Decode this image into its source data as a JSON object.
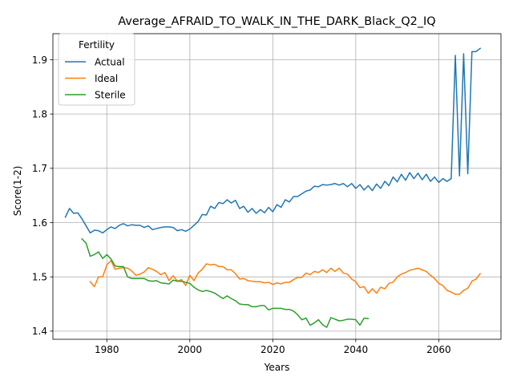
{
  "chart_data": {
    "type": "line",
    "title": "Average_AFRAID_TO_WALK_IN_THE_DARK_Black_Q2_IQ",
    "xlabel": "Years",
    "ylabel": "Score(1-2)",
    "xlim": [
      1967,
      2075
    ],
    "ylim": [
      1.385,
      1.948
    ],
    "xticks": [
      1980,
      2000,
      2020,
      2040,
      2060
    ],
    "yticks": [
      1.4,
      1.5,
      1.6,
      1.7,
      1.8,
      1.9
    ],
    "xtick_labels": [
      "1980",
      "2000",
      "2020",
      "2040",
      "2060"
    ],
    "ytick_labels": [
      "1.4",
      "1.5",
      "1.6",
      "1.7",
      "1.8",
      "1.9"
    ],
    "grid": true,
    "legend": {
      "title": "Fertility",
      "placement": "top-left"
    },
    "series": [
      {
        "name": "Actual",
        "color": "#1f77b4",
        "x": [
          1970,
          1971,
          1972,
          1973,
          1974,
          1975,
          1976,
          1977,
          1978,
          1979,
          1980,
          1981,
          1982,
          1983,
          1984,
          1985,
          1986,
          1987,
          1988,
          1989,
          1990,
          1991,
          1992,
          1993,
          1994,
          1995,
          1996,
          1997,
          1998,
          1999,
          2000,
          2001,
          2002,
          2003,
          2004,
          2005,
          2006,
          2007,
          2008,
          2009,
          2010,
          2011,
          2012,
          2013,
          2014,
          2015,
          2016,
          2017,
          2018,
          2019,
          2020,
          2021,
          2022,
          2023,
          2024,
          2025,
          2026,
          2027,
          2028,
          2029,
          2030,
          2031,
          2032,
          2033,
          2034,
          2035,
          2036,
          2037,
          2038,
          2039,
          2040,
          2041,
          2042,
          2043,
          2044,
          2045,
          2046,
          2047,
          2048,
          2049,
          2050,
          2051,
          2052,
          2053,
          2054,
          2055,
          2056,
          2057,
          2058,
          2059,
          2060,
          2061,
          2062,
          2063,
          2064,
          2065,
          2066,
          2067,
          2068,
          2069,
          2070
        ],
        "values": [
          1.61,
          1.626,
          1.617,
          1.618,
          1.607,
          1.594,
          1.581,
          1.586,
          1.585,
          1.581,
          1.587,
          1.592,
          1.589,
          1.595,
          1.598,
          1.594,
          1.596,
          1.595,
          1.595,
          1.591,
          1.594,
          1.587,
          1.589,
          1.591,
          1.592,
          1.592,
          1.591,
          1.585,
          1.587,
          1.584,
          1.588,
          1.595,
          1.602,
          1.615,
          1.614,
          1.63,
          1.626,
          1.637,
          1.635,
          1.642,
          1.636,
          1.641,
          1.626,
          1.63,
          1.619,
          1.626,
          1.617,
          1.624,
          1.618,
          1.628,
          1.62,
          1.633,
          1.628,
          1.642,
          1.638,
          1.648,
          1.648,
          1.653,
          1.658,
          1.66,
          1.667,
          1.666,
          1.67,
          1.669,
          1.67,
          1.672,
          1.669,
          1.672,
          1.666,
          1.672,
          1.663,
          1.67,
          1.66,
          1.668,
          1.659,
          1.671,
          1.663,
          1.676,
          1.668,
          1.684,
          1.675,
          1.689,
          1.678,
          1.692,
          1.681,
          1.691,
          1.679,
          1.689,
          1.676,
          1.684,
          1.674,
          1.681,
          1.676,
          1.681,
          1.908,
          1.686,
          1.911,
          1.69,
          1.915,
          1.915,
          1.921
        ]
      },
      {
        "name": "Ideal",
        "color": "#ff7f0e",
        "x": [
          1976,
          1977,
          1978,
          1979,
          1980,
          1981,
          1982,
          1983,
          1984,
          1985,
          1986,
          1987,
          1988,
          1989,
          1990,
          1991,
          1992,
          1993,
          1994,
          1995,
          1996,
          1997,
          1998,
          1999,
          2000,
          2001,
          2002,
          2003,
          2004,
          2005,
          2006,
          2007,
          2008,
          2009,
          2010,
          2011,
          2012,
          2013,
          2014,
          2015,
          2016,
          2017,
          2018,
          2019,
          2020,
          2021,
          2022,
          2023,
          2024,
          2025,
          2026,
          2027,
          2028,
          2029,
          2030,
          2031,
          2032,
          2033,
          2034,
          2035,
          2036,
          2037,
          2038,
          2039,
          2040,
          2041,
          2042,
          2043,
          2044,
          2045,
          2046,
          2047,
          2048,
          2049,
          2050,
          2051,
          2052,
          2053,
          2054,
          2055,
          2056,
          2057,
          2058,
          2059,
          2060,
          2061,
          2062,
          2063,
          2064,
          2065,
          2066,
          2067,
          2068,
          2069,
          2070
        ],
        "values": [
          1.491,
          1.482,
          1.5,
          1.5,
          1.522,
          1.53,
          1.514,
          1.516,
          1.517,
          1.516,
          1.511,
          1.503,
          1.505,
          1.509,
          1.517,
          1.514,
          1.51,
          1.504,
          1.508,
          1.493,
          1.502,
          1.492,
          1.495,
          1.484,
          1.503,
          1.493,
          1.507,
          1.514,
          1.524,
          1.522,
          1.523,
          1.519,
          1.519,
          1.513,
          1.513,
          1.506,
          1.496,
          1.497,
          1.493,
          1.492,
          1.491,
          1.491,
          1.489,
          1.49,
          1.486,
          1.489,
          1.487,
          1.49,
          1.49,
          1.495,
          1.499,
          1.499,
          1.507,
          1.504,
          1.51,
          1.508,
          1.513,
          1.508,
          1.516,
          1.51,
          1.516,
          1.507,
          1.505,
          1.496,
          1.491,
          1.48,
          1.482,
          1.47,
          1.478,
          1.47,
          1.481,
          1.478,
          1.488,
          1.49,
          1.5,
          1.505,
          1.508,
          1.512,
          1.514,
          1.516,
          1.513,
          1.51,
          1.503,
          1.497,
          1.488,
          1.484,
          1.475,
          1.472,
          1.468,
          1.468,
          1.475,
          1.479,
          1.492,
          1.496,
          1.506
        ]
      },
      {
        "name": "Sterile",
        "color": "#2ca02c",
        "x": [
          1974,
          1975,
          1976,
          1977,
          1978,
          1979,
          1980,
          1981,
          1982,
          1983,
          1984,
          1985,
          1986,
          1987,
          1988,
          1989,
          1990,
          1991,
          1992,
          1993,
          1994,
          1995,
          1996,
          1997,
          1998,
          1999,
          2000,
          2001,
          2002,
          2003,
          2004,
          2005,
          2006,
          2007,
          2008,
          2009,
          2010,
          2011,
          2012,
          2013,
          2014,
          2015,
          2016,
          2017,
          2018,
          2019,
          2020,
          2021,
          2022,
          2023,
          2024,
          2025,
          2026,
          2027,
          2028,
          2029,
          2030,
          2031,
          2032,
          2033,
          2034,
          2035,
          2036,
          2037,
          2038,
          2039,
          2040,
          2041,
          2042,
          2043
        ],
        "values": [
          1.57,
          1.562,
          1.538,
          1.541,
          1.546,
          1.534,
          1.541,
          1.533,
          1.52,
          1.519,
          1.519,
          1.5,
          1.497,
          1.497,
          1.497,
          1.497,
          1.493,
          1.492,
          1.493,
          1.489,
          1.488,
          1.487,
          1.494,
          1.492,
          1.492,
          1.49,
          1.488,
          1.481,
          1.476,
          1.473,
          1.475,
          1.473,
          1.47,
          1.465,
          1.46,
          1.465,
          1.46,
          1.456,
          1.45,
          1.449,
          1.449,
          1.445,
          1.445,
          1.447,
          1.447,
          1.439,
          1.442,
          1.442,
          1.442,
          1.44,
          1.44,
          1.437,
          1.43,
          1.421,
          1.424,
          1.411,
          1.415,
          1.421,
          1.412,
          1.407,
          1.425,
          1.422,
          1.419,
          1.42,
          1.422,
          1.422,
          1.421,
          1.411,
          1.424,
          1.423
        ]
      }
    ]
  }
}
